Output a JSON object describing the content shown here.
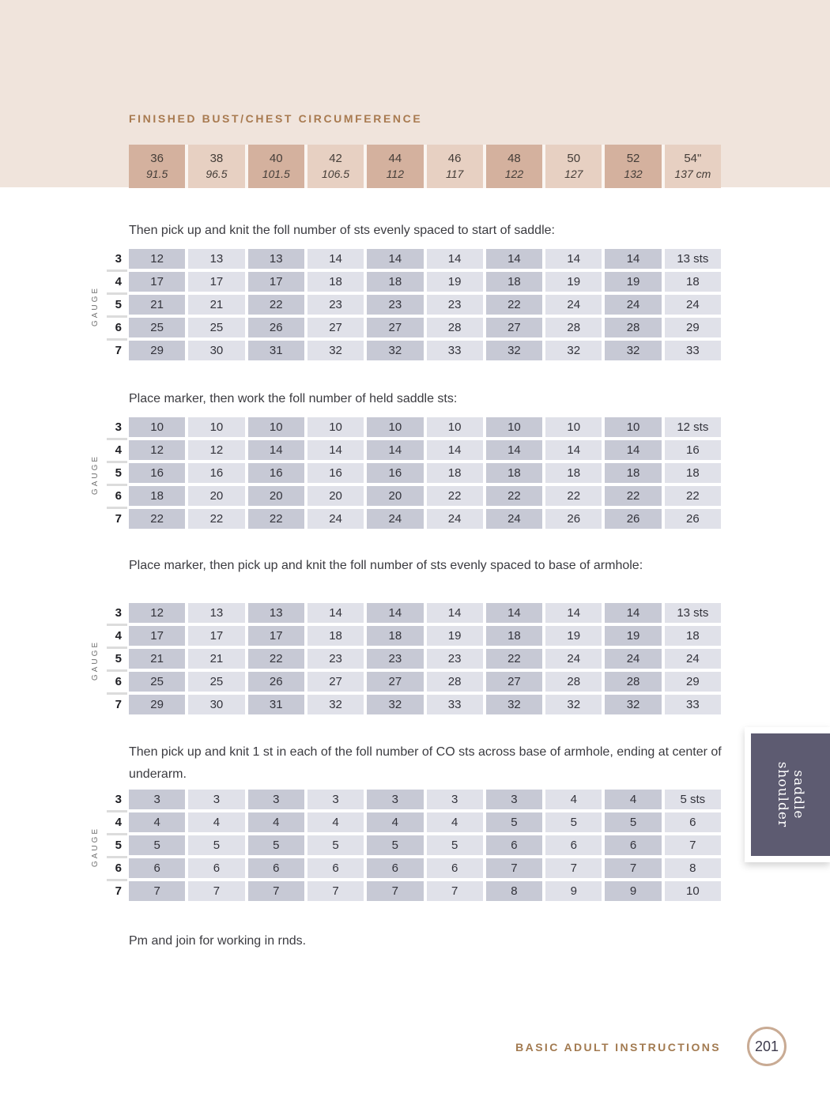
{
  "header": {
    "title": "FINISHED BUST/CHEST CIRCUMFERENCE",
    "sizes": [
      {
        "inches": "36",
        "cm": "91.5"
      },
      {
        "inches": "38",
        "cm": "96.5"
      },
      {
        "inches": "40",
        "cm": "101.5"
      },
      {
        "inches": "42",
        "cm": "106.5"
      },
      {
        "inches": "44",
        "cm": "112"
      },
      {
        "inches": "46",
        "cm": "117"
      },
      {
        "inches": "48",
        "cm": "122"
      },
      {
        "inches": "50",
        "cm": "127"
      },
      {
        "inches": "52",
        "cm": "132"
      },
      {
        "inches": "54\"",
        "cm": "137 cm"
      }
    ]
  },
  "gauge_label": "GAUGE",
  "gauges": [
    "3",
    "4",
    "5",
    "6",
    "7"
  ],
  "sections": [
    {
      "heading": "Then pick up and knit the foll number of sts evenly spaced to start of saddle:",
      "rows": [
        [
          "12",
          "13",
          "13",
          "14",
          "14",
          "14",
          "14",
          "14",
          "14",
          "13 sts"
        ],
        [
          "17",
          "17",
          "17",
          "18",
          "18",
          "19",
          "18",
          "19",
          "19",
          "18"
        ],
        [
          "21",
          "21",
          "22",
          "23",
          "23",
          "23",
          "22",
          "24",
          "24",
          "24"
        ],
        [
          "25",
          "25",
          "26",
          "27",
          "27",
          "28",
          "27",
          "28",
          "28",
          "29"
        ],
        [
          "29",
          "30",
          "31",
          "32",
          "32",
          "33",
          "32",
          "32",
          "32",
          "33"
        ]
      ]
    },
    {
      "heading": "Place marker, then work the foll number of held saddle sts:",
      "rows": [
        [
          "10",
          "10",
          "10",
          "10",
          "10",
          "10",
          "10",
          "10",
          "10",
          "12 sts"
        ],
        [
          "12",
          "12",
          "14",
          "14",
          "14",
          "14",
          "14",
          "14",
          "14",
          "16"
        ],
        [
          "16",
          "16",
          "16",
          "16",
          "16",
          "18",
          "18",
          "18",
          "18",
          "18"
        ],
        [
          "18",
          "20",
          "20",
          "20",
          "20",
          "22",
          "22",
          "22",
          "22",
          "22"
        ],
        [
          "22",
          "22",
          "22",
          "24",
          "24",
          "24",
          "24",
          "26",
          "26",
          "26"
        ]
      ]
    },
    {
      "heading": "Place marker, then pick up and knit the foll number of sts evenly spaced to base of armhole:",
      "rows": [
        [
          "12",
          "13",
          "13",
          "14",
          "14",
          "14",
          "14",
          "14",
          "14",
          "13 sts"
        ],
        [
          "17",
          "17",
          "17",
          "18",
          "18",
          "19",
          "18",
          "19",
          "19",
          "18"
        ],
        [
          "21",
          "21",
          "22",
          "23",
          "23",
          "23",
          "22",
          "24",
          "24",
          "24"
        ],
        [
          "25",
          "25",
          "26",
          "27",
          "27",
          "28",
          "27",
          "28",
          "28",
          "29"
        ],
        [
          "29",
          "30",
          "31",
          "32",
          "32",
          "33",
          "32",
          "32",
          "32",
          "33"
        ]
      ]
    },
    {
      "heading": "Then pick up and knit 1 st in each of the foll number of CO sts across base of armhole, ending at center of underarm.",
      "rows": [
        [
          "3",
          "3",
          "3",
          "3",
          "3",
          "3",
          "3",
          "4",
          "4",
          "5 sts"
        ],
        [
          "4",
          "4",
          "4",
          "4",
          "4",
          "4",
          "5",
          "5",
          "5",
          "6"
        ],
        [
          "5",
          "5",
          "5",
          "5",
          "5",
          "5",
          "6",
          "6",
          "6",
          "7"
        ],
        [
          "6",
          "6",
          "6",
          "6",
          "6",
          "6",
          "7",
          "7",
          "7",
          "8"
        ],
        [
          "7",
          "7",
          "7",
          "7",
          "7",
          "7",
          "8",
          "9",
          "9",
          "10"
        ]
      ]
    }
  ],
  "note": "Pm and join for working in rnds.",
  "side_tab": {
    "line1": "saddle",
    "line2": "shoulder"
  },
  "footer": {
    "label": "BASIC ADULT INSTRUCTIONS",
    "page_number": "201"
  },
  "colors": {
    "band": "#f0e4dc",
    "size_cell_dark": "#d4b19e",
    "size_cell_light": "#e7d0c2",
    "gauge_cell_dark": "#c7c9d5",
    "gauge_cell_light": "#e0e1e9",
    "accent_brown": "#a87a50",
    "tab_background": "#5d5b71"
  }
}
